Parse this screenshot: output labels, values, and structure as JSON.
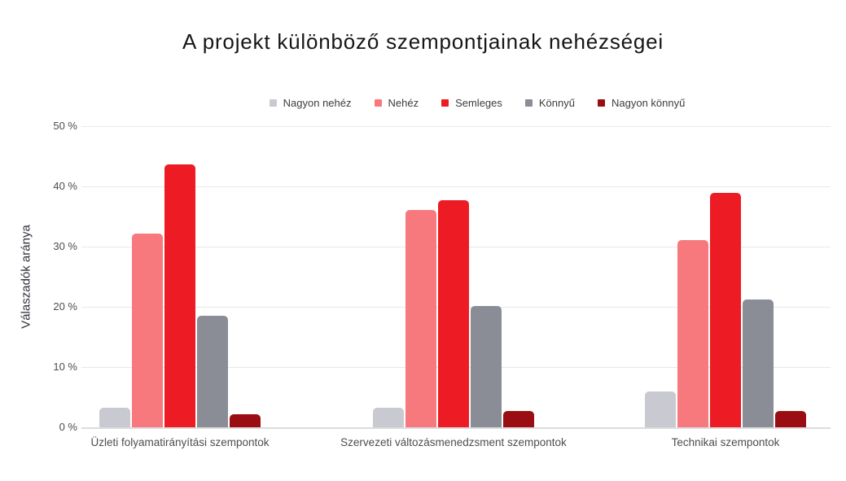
{
  "chart_data": {
    "type": "bar",
    "title": "A projekt különböző szempontjainak nehézségei",
    "xlabel": "",
    "ylabel": "Válaszadók aránya",
    "ylim": [
      0,
      50
    ],
    "grid": true,
    "legend_position": "top",
    "background_color": "#ffffff",
    "yticks": [
      {
        "value": 0,
        "label": "0 %"
      },
      {
        "value": 10,
        "label": "10 %"
      },
      {
        "value": 20,
        "label": "20 %"
      },
      {
        "value": 30,
        "label": "30 %"
      },
      {
        "value": 40,
        "label": "40 %"
      },
      {
        "value": 50,
        "label": "50 %"
      }
    ],
    "categories": [
      "Üzleti folyamatirányítási szempontok",
      "Szervezeti változásmenedzsment szempontok",
      "Technikai szempontok"
    ],
    "series": [
      {
        "key": "nagyon-nehez",
        "name": "Nagyon nehéz",
        "color": "#c9c9d1",
        "values": [
          3.2,
          3.2,
          5.9
        ]
      },
      {
        "key": "nehez",
        "name": "Nehéz",
        "color": "#f7797d",
        "values": [
          32.2,
          36.1,
          31.1
        ]
      },
      {
        "key": "semleges",
        "name": "Semleges",
        "color": "#ed1c24",
        "values": [
          43.7,
          37.7,
          38.9
        ]
      },
      {
        "key": "konnyu",
        "name": "Könnyű",
        "color": "#8b8d96",
        "values": [
          18.5,
          20.1,
          21.2
        ]
      },
      {
        "key": "nagyon-konnyu",
        "name": "Nagyon könnyű",
        "color": "#9a0d12",
        "values": [
          2.2,
          2.7,
          2.7
        ]
      }
    ]
  }
}
